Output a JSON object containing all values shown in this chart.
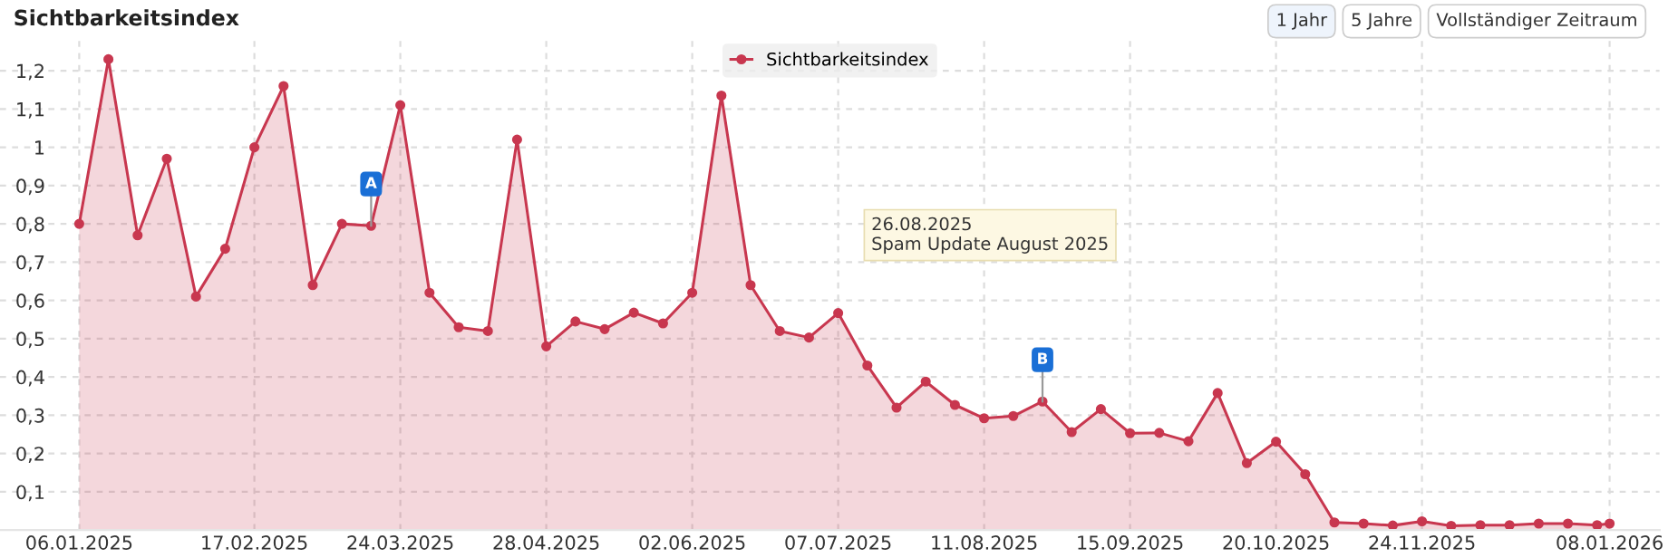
{
  "chart_data": {
    "type": "area",
    "title": "Sichtbarkeitsindex",
    "x": [
      "2025-01-06",
      "2025-01-13",
      "2025-01-20",
      "2025-01-27",
      "2025-02-03",
      "2025-02-10",
      "2025-02-17",
      "2025-02-24",
      "2025-03-03",
      "2025-03-10",
      "2025-03-17",
      "2025-03-24",
      "2025-03-31",
      "2025-04-07",
      "2025-04-14",
      "2025-04-21",
      "2025-04-28",
      "2025-05-05",
      "2025-05-12",
      "2025-05-19",
      "2025-05-26",
      "2025-06-02",
      "2025-06-09",
      "2025-06-16",
      "2025-06-23",
      "2025-06-30",
      "2025-07-07",
      "2025-07-14",
      "2025-07-21",
      "2025-07-28",
      "2025-08-04",
      "2025-08-11",
      "2025-08-18",
      "2025-08-25",
      "2025-09-01",
      "2025-09-08",
      "2025-09-15",
      "2025-09-22",
      "2025-09-29",
      "2025-10-06",
      "2025-10-13",
      "2025-10-20",
      "2025-10-27",
      "2025-11-03",
      "2025-11-10",
      "2025-11-17",
      "2025-11-24",
      "2025-12-01",
      "2025-12-08",
      "2025-12-15",
      "2025-12-22",
      "2025-12-29",
      "2026-01-05",
      "2026-01-08"
    ],
    "series": [
      {
        "name": "Sichtbarkeitsindex",
        "color": "#c8374f",
        "values": [
          0.8,
          1.23,
          0.77,
          0.97,
          0.61,
          0.735,
          1.0,
          1.16,
          0.64,
          0.8,
          0.795,
          1.11,
          0.62,
          0.53,
          0.52,
          1.02,
          0.48,
          0.545,
          0.525,
          0.568,
          0.54,
          0.62,
          1.135,
          0.64,
          0.52,
          0.503,
          0.567,
          0.43,
          0.32,
          0.388,
          0.327,
          0.292,
          0.298,
          0.336,
          0.256,
          0.316,
          0.253,
          0.254,
          0.232,
          0.358,
          0.175,
          0.231,
          0.146,
          0.02,
          0.017,
          0.012,
          0.023,
          0.011,
          0.013,
          0.013,
          0.017,
          0.017,
          0.013,
          0.017
        ]
      }
    ],
    "xlim": [
      "2024-12-18",
      "2026-01-20"
    ],
    "xticks": [
      {
        "value": "2025-01-06",
        "label": "06.01.2025"
      },
      {
        "value": "2025-02-17",
        "label": "17.02.2025"
      },
      {
        "value": "2025-03-24",
        "label": "24.03.2025"
      },
      {
        "value": "2025-04-28",
        "label": "28.04.2025"
      },
      {
        "value": "2025-06-02",
        "label": "02.06.2025"
      },
      {
        "value": "2025-07-07",
        "label": "07.07.2025"
      },
      {
        "value": "2025-08-11",
        "label": "11.08.2025"
      },
      {
        "value": "2025-09-15",
        "label": "15.09.2025"
      },
      {
        "value": "2025-10-20",
        "label": "20.10.2025"
      },
      {
        "value": "2025-11-24",
        "label": "24.11.2025"
      },
      {
        "value": "2026-01-08",
        "label": "08.01.2026"
      }
    ],
    "ylim": [
      0,
      1.29
    ],
    "yticks": [
      {
        "value": 0.1,
        "label": "0,1"
      },
      {
        "value": 0.2,
        "label": "0,2"
      },
      {
        "value": 0.3,
        "label": "0,3"
      },
      {
        "value": 0.4,
        "label": "0,4"
      },
      {
        "value": 0.5,
        "label": "0,5"
      },
      {
        "value": 0.6,
        "label": "0,6"
      },
      {
        "value": 0.7,
        "label": "0,7"
      },
      {
        "value": 0.8,
        "label": "0,8"
      },
      {
        "value": 0.9,
        "label": "0,9"
      },
      {
        "value": 1,
        "label": "1"
      },
      {
        "value": 1.1,
        "label": "1,1"
      },
      {
        "value": 1.2,
        "label": "1,2"
      }
    ],
    "grid": true,
    "legend": "top",
    "marker": "circle",
    "line_style": "solid",
    "annotations": [
      {
        "text": "A",
        "x": "2025-03-17",
        "y": 0.795
      },
      {
        "text": "B",
        "x": "2025-08-25",
        "y": 0.336
      },
      "26.08.2025\nSpam Update August 2025",
      "1 Jahr",
      "5 Jahre",
      "Vollständiger Zeitraum"
    ]
  }
}
